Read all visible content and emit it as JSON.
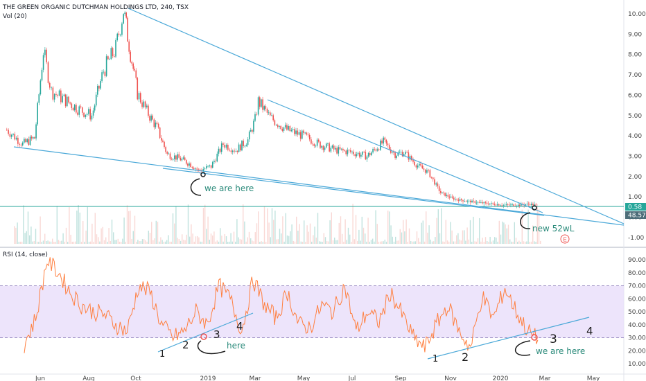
{
  "header": {
    "title": "THE GREEN ORGANIC DUTCHMAN HOLDINGS LTD, 240, TSX",
    "volume_label": "Vol (20)",
    "rsi_label": "RSI (14, close)"
  },
  "colors": {
    "price_up": "#26a69a",
    "price_down": "#ef5350",
    "trendline": "#4aa8d8",
    "annotation_text": "#2a8a7a",
    "rsi_line": "#ff7f3f",
    "rsi_band": "#e9ddfa",
    "volume": "#a5d6d0",
    "current_price_tag": "#26a69a",
    "volume_tag": "#4d6d79"
  },
  "chart_data": [
    {
      "type": "line",
      "name": "price",
      "y_axis": {
        "ticks": [
          "10.00",
          "9.00",
          "8.00",
          "7.00",
          "6.00",
          "5.00",
          "4.00",
          "3.00",
          "2.00",
          "1.00",
          "0.00",
          "-1.00"
        ],
        "values": [
          10,
          9,
          8,
          7,
          6,
          5,
          4,
          3,
          2,
          1,
          0,
          -1
        ]
      },
      "x_axis": {
        "ticks": [
          "Jun",
          "Aug",
          "Oct",
          "2019",
          "Mar",
          "May",
          "Jul",
          "Sep",
          "Nov",
          "2020",
          "Mar",
          "May"
        ]
      },
      "dates": [
        "2018-04-20",
        "2018-05-10",
        "2018-05-25",
        "2018-06-05",
        "2018-06-15",
        "2018-07-01",
        "2018-07-20",
        "2018-08-05",
        "2018-08-20",
        "2018-09-05",
        "2018-09-15",
        "2018-09-24",
        "2018-10-03",
        "2018-10-15",
        "2018-10-28",
        "2018-11-10",
        "2018-11-25",
        "2018-12-10",
        "2018-12-20",
        "2019-01-05",
        "2019-01-20",
        "2019-02-05",
        "2019-02-20",
        "2019-03-01",
        "2019-03-05",
        "2019-03-20",
        "2019-04-10",
        "2019-05-01",
        "2019-05-20",
        "2019-06-10",
        "2019-07-01",
        "2019-07-20",
        "2019-08-10",
        "2019-08-25",
        "2019-09-05",
        "2019-09-20",
        "2019-10-05",
        "2019-10-20",
        "2019-11-05",
        "2019-11-20",
        "2019-12-10",
        "2020-01-05",
        "2020-01-25",
        "2020-02-10",
        "2020-02-20"
      ],
      "values": [
        4.3,
        3.6,
        3.9,
        8.2,
        6.2,
        5.8,
        5.3,
        5.0,
        7.2,
        8.3,
        10.2,
        8.1,
        6.1,
        5.2,
        4.4,
        3.1,
        2.9,
        2.6,
        2.3,
        2.5,
        3.6,
        3.3,
        3.8,
        4.8,
        5.7,
        4.9,
        4.3,
        4.0,
        3.6,
        3.3,
        3.2,
        3.0,
        3.7,
        3.1,
        3.2,
        2.6,
        2.2,
        1.2,
        0.9,
        0.8,
        0.7,
        0.6,
        0.6,
        0.65,
        0.58
      ],
      "current_price": "0.58",
      "volume_value": "48.57",
      "annotations": [
        "we are here",
        "new 52wL"
      ],
      "earnings_marker": "E"
    },
    {
      "type": "line",
      "name": "RSI (14, close)",
      "y_axis": {
        "ticks": [
          "90.00",
          "80.00",
          "70.00",
          "60.00",
          "50.00",
          "40.00",
          "30.00",
          "20.00",
          "10.00"
        ],
        "values": [
          90,
          80,
          70,
          60,
          50,
          40,
          30,
          20,
          10
        ]
      },
      "band": [
        30,
        70
      ],
      "values": [
        25,
        45,
        90,
        80,
        65,
        55,
        50,
        48,
        40,
        35,
        70,
        65,
        40,
        30,
        35,
        50,
        40,
        70,
        60,
        35,
        75,
        55,
        45,
        65,
        40,
        38,
        55,
        50,
        70,
        35,
        50,
        42,
        65,
        48,
        30,
        22,
        40,
        55,
        35,
        22,
        62,
        45,
        68,
        50,
        35,
        28
      ],
      "annotations": [
        "1",
        "2",
        "3",
        "4",
        "here",
        "1",
        "2",
        "3",
        "4",
        "we are here"
      ]
    }
  ]
}
